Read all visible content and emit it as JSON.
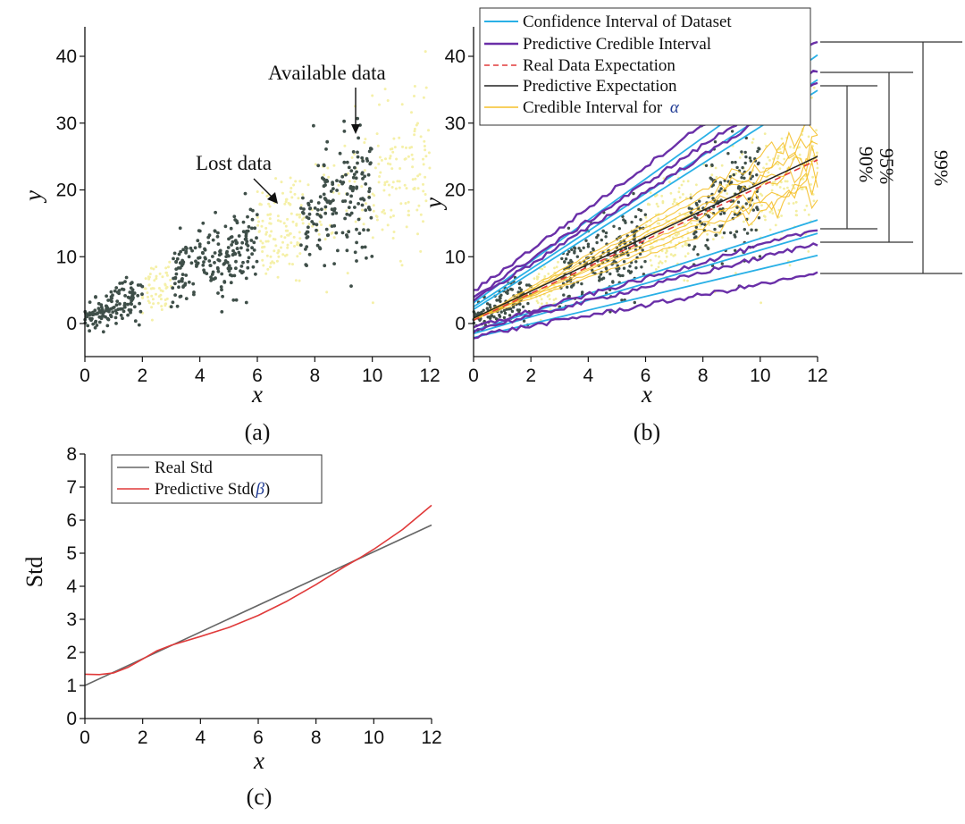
{
  "chart_data": [
    {
      "id": "a",
      "type": "scatter",
      "caption": "(a)",
      "xlabel": "x",
      "ylabel": "y",
      "xlim": [
        0,
        12
      ],
      "ylim": [
        -5,
        45
      ],
      "xticks": [
        0,
        2,
        4,
        6,
        8,
        10,
        12
      ],
      "yticks": [
        0,
        10,
        20,
        30,
        40
      ],
      "relationship": {
        "mean": "y = 2x + 0.5",
        "std": "0.4x + 1"
      },
      "available_ranges": [
        [
          0,
          2
        ],
        [
          3,
          6
        ],
        [
          7.5,
          10
        ]
      ],
      "lost_ranges": [
        [
          2,
          3
        ],
        [
          6,
          7.5
        ],
        [
          10,
          12
        ]
      ],
      "annotations": [
        {
          "text": "Available data",
          "point_to": [
            9.4,
            28
          ]
        },
        {
          "text": "Lost data",
          "point_to": [
            6.6,
            15
          ]
        }
      ],
      "series": [
        {
          "name": "Available data",
          "color": "#3f4f49"
        },
        {
          "name": "Lost data",
          "color": "#f5f0a8"
        }
      ]
    },
    {
      "id": "b",
      "type": "line",
      "caption": "(b)",
      "xlabel": "x",
      "ylabel": "y",
      "xlim": [
        0,
        12
      ],
      "ylim": [
        -5,
        45
      ],
      "xticks": [
        0,
        2,
        4,
        6,
        8,
        10,
        12
      ],
      "yticks": [
        0,
        10,
        20,
        30,
        40
      ],
      "legend_position": "top",
      "legend": [
        {
          "label": "Confidence Interval of Dataset",
          "color": "#29b0e6",
          "style": "solid"
        },
        {
          "label": "Predictive Credible Interval",
          "color": "#6a2fa8",
          "style": "solid"
        },
        {
          "label": "Real Data Expectation",
          "color": "#e23a3a",
          "style": "dashed"
        },
        {
          "label": "Predictive Expectation",
          "color": "#222222",
          "style": "solid"
        },
        {
          "label": "Credible Interval for ",
          "symbol": "α",
          "color": "#f5c02a",
          "style": "solid"
        }
      ],
      "bands": [
        {
          "label": "90%",
          "y_range": [
            14.1,
            35.9
          ],
          "at_x": 12
        },
        {
          "label": "95%",
          "y_range": [
            12.0,
            38.0
          ],
          "at_x": 12
        },
        {
          "label": "99%",
          "y_range": [
            7.4,
            42.3
          ],
          "at_x": 12
        }
      ],
      "series": [
        {
          "name": "Confidence Interval of Dataset (upper 99%)",
          "x": [
            0,
            12
          ],
          "y": [
            3.1,
            40.2
          ]
        },
        {
          "name": "Confidence Interval of Dataset (upper 95%)",
          "x": [
            0,
            12
          ],
          "y": [
            2.5,
            36.5
          ]
        },
        {
          "name": "Confidence Interval of Dataset (upper 90%)",
          "x": [
            0,
            12
          ],
          "y": [
            2.1,
            34.9
          ]
        },
        {
          "name": "Confidence Interval of Dataset (lower 90%)",
          "x": [
            0,
            12
          ],
          "y": [
            -1.1,
            15.5
          ]
        },
        {
          "name": "Confidence Interval of Dataset (lower 95%)",
          "x": [
            0,
            12
          ],
          "y": [
            -1.5,
            13.5
          ]
        },
        {
          "name": "Confidence Interval of Dataset (lower 99%)",
          "x": [
            0,
            12
          ],
          "y": [
            -2.1,
            10.2
          ]
        },
        {
          "name": "Predictive Credible Interval (upper 99%)",
          "x": [
            0,
            12
          ],
          "y": [
            4.8,
            42.3
          ]
        },
        {
          "name": "Predictive Credible Interval (upper 95%)",
          "x": [
            0,
            12
          ],
          "y": [
            4.0,
            38.0
          ]
        },
        {
          "name": "Predictive Credible Interval (upper 90%)",
          "x": [
            0,
            12
          ],
          "y": [
            3.5,
            35.9
          ]
        },
        {
          "name": "Predictive Credible Interval (lower 90%)",
          "x": [
            0,
            12
          ],
          "y": [
            -0.6,
            14.1
          ]
        },
        {
          "name": "Predictive Credible Interval (lower 95%)",
          "x": [
            0,
            12
          ],
          "y": [
            -1.0,
            12.0
          ]
        },
        {
          "name": "Predictive Credible Interval (lower 99%)",
          "x": [
            0,
            12
          ],
          "y": [
            -1.9,
            7.4
          ]
        },
        {
          "name": "Real Data Expectation",
          "x": [
            0,
            12
          ],
          "y": [
            0.5,
            24.5
          ]
        },
        {
          "name": "Predictive Expectation",
          "x": [
            0,
            12
          ],
          "y": [
            0.8,
            25.0
          ]
        },
        {
          "name": "Credible Interval for alpha",
          "x_range": [
            0,
            12
          ],
          "y_at_12": [
            19,
            30
          ]
        }
      ]
    },
    {
      "id": "c",
      "type": "line",
      "caption": "(c)",
      "xlabel": "x",
      "ylabel": "Std",
      "xlim": [
        0,
        12
      ],
      "ylim": [
        0,
        8
      ],
      "xticks": [
        0,
        2,
        4,
        6,
        8,
        10,
        12
      ],
      "yticks": [
        0,
        1,
        2,
        3,
        4,
        5,
        6,
        7,
        8
      ],
      "legend_position": "top-left",
      "legend": [
        {
          "label": "Real Std",
          "color": "#666666"
        },
        {
          "label": "Predictive Std(",
          "symbol": "β",
          "suffix": ")",
          "color": "#e03a3a"
        }
      ],
      "series": [
        {
          "name": "Real Std",
          "x": [
            0,
            12
          ],
          "y": [
            1.0,
            5.85
          ]
        },
        {
          "name": "Predictive Std(β)",
          "x": [
            0,
            0.5,
            1,
            1.5,
            2,
            2.5,
            3,
            4,
            5,
            6,
            7,
            8,
            9,
            9.5,
            10,
            11,
            12
          ],
          "y": [
            1.34,
            1.33,
            1.38,
            1.55,
            1.8,
            2.05,
            2.22,
            2.48,
            2.76,
            3.12,
            3.55,
            4.05,
            4.6,
            4.85,
            5.12,
            5.72,
            6.45
          ]
        }
      ]
    }
  ]
}
